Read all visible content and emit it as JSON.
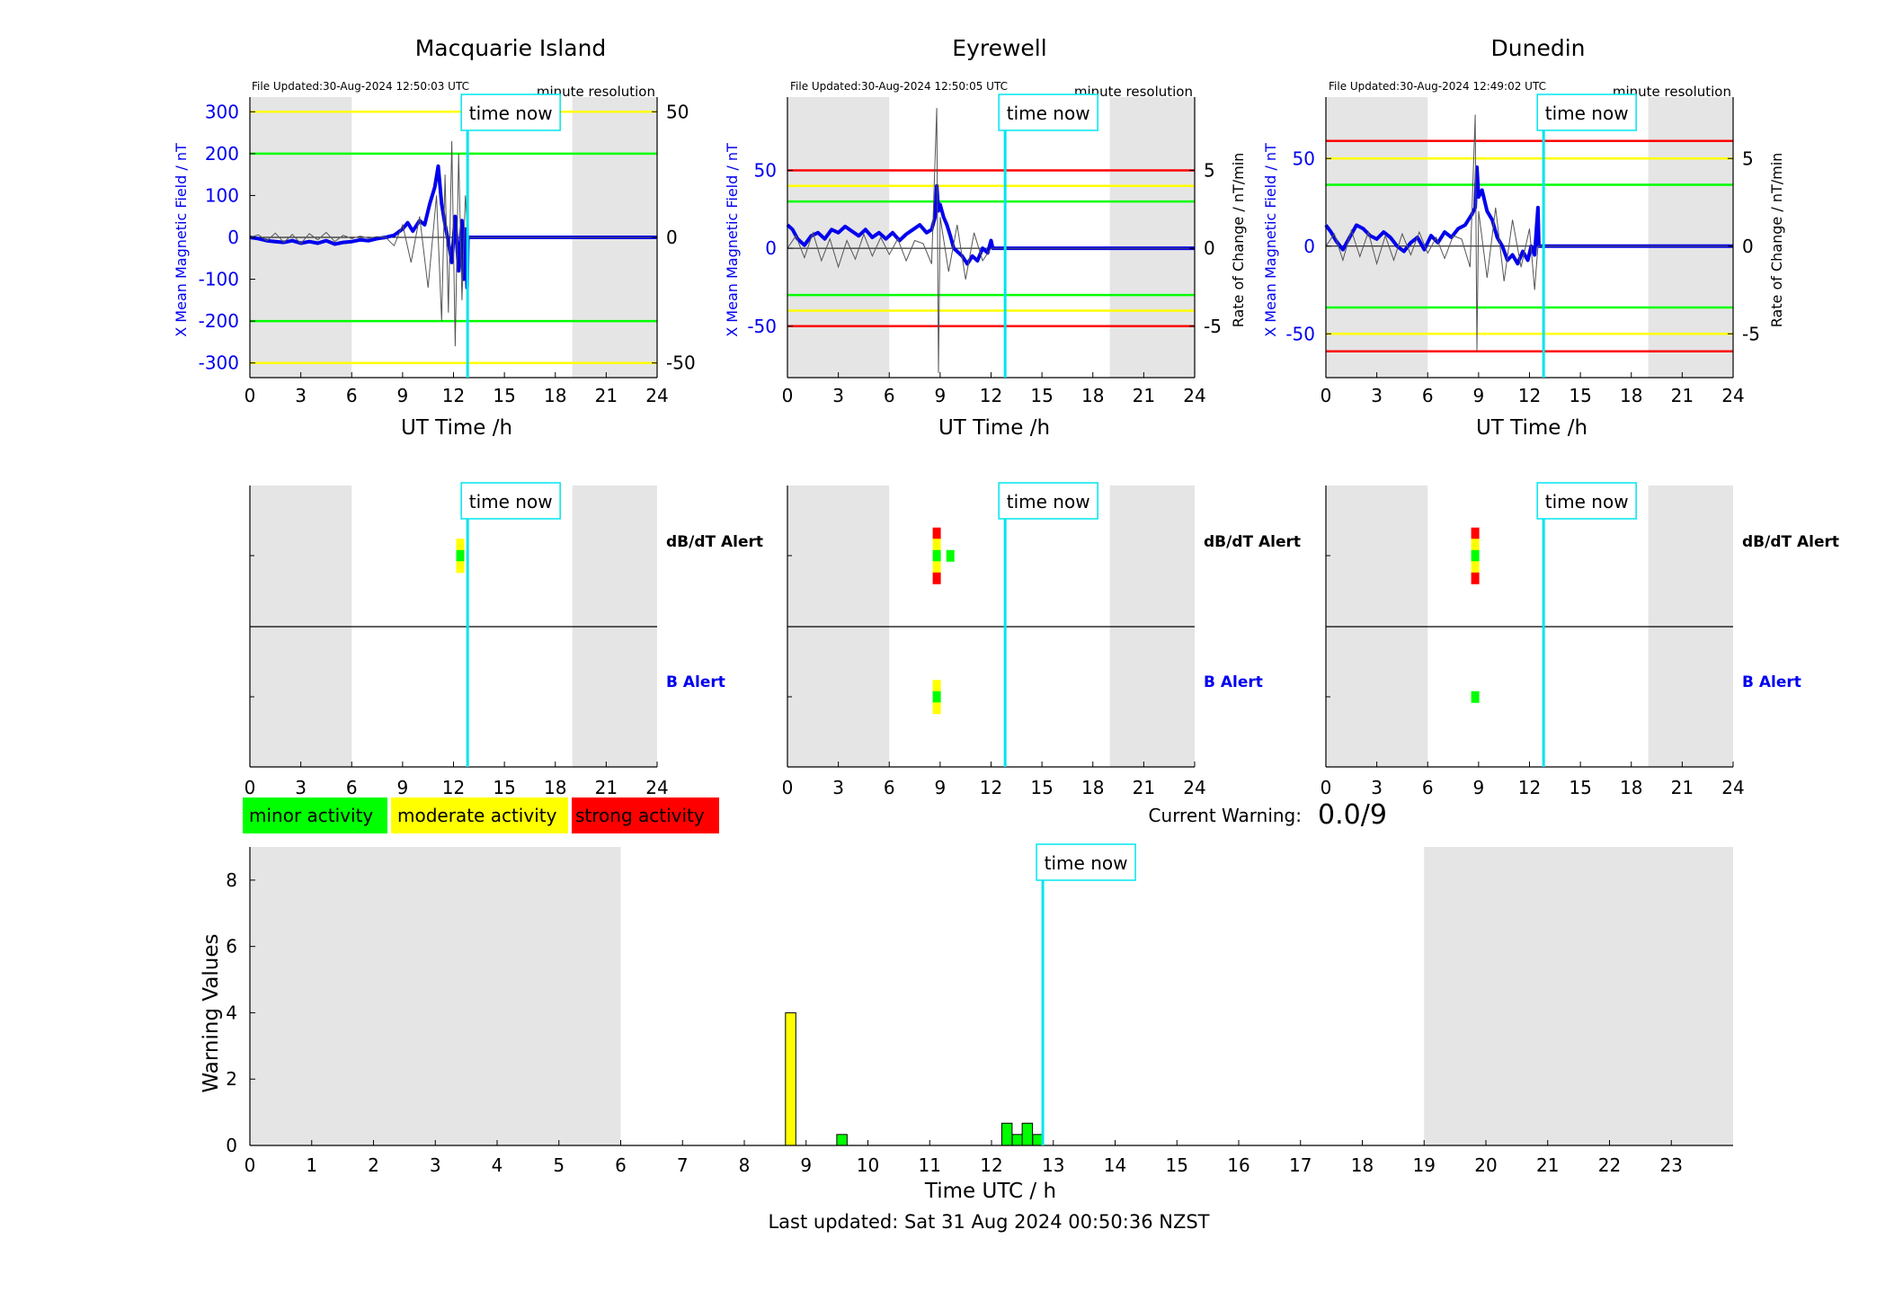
{
  "figure": {
    "footer": "Last updated: Sat 31 Aug 2024 00:50:36 NZST",
    "time_now_label": "time now",
    "current_warning_label": "Current Warning:",
    "current_warning_value": "0.0/9",
    "legend": [
      {
        "label": "minor activity",
        "color": "#00ff00"
      },
      {
        "label": "moderate activity",
        "color": "#ffff00"
      },
      {
        "label": "strong activity",
        "color": "#ff0000"
      }
    ],
    "colors": {
      "field": "#0000ee",
      "time_now": "#00e5ee",
      "shade": "#e5e5e5",
      "green": "#00ff00",
      "yellow": "#ffff00",
      "red": "#ff0000",
      "roc": "#555555"
    }
  },
  "chart_data": [
    {
      "type": "line",
      "panel": "field",
      "station": "Macquarie Island",
      "title": "Macquarie Island",
      "file_updated": "File Updated:30-Aug-2024 12:50:03 UTC",
      "resolution": "minute resolution",
      "xlabel": "UT Time /h",
      "ylabel_left": "X Mean Magnetic Field / nT",
      "ylabel_right": "",
      "xlim": [
        0,
        24
      ],
      "xticks": [
        0,
        3,
        6,
        9,
        12,
        15,
        18,
        21,
        24
      ],
      "ylim": [
        -335,
        335
      ],
      "yticks": [
        -300,
        -200,
        -100,
        0,
        100,
        200,
        300
      ],
      "yticks_right": [
        {
          "value": -50,
          "at": -300
        },
        {
          "value": 0,
          "at": 0
        },
        {
          "value": 50,
          "at": 300
        }
      ],
      "shaded_x": [
        [
          0,
          6
        ],
        [
          19,
          24
        ]
      ],
      "thresholds": [
        {
          "color": "yellow",
          "values": [
            300,
            -300
          ]
        },
        {
          "color": "green",
          "values": [
            200,
            -200
          ]
        }
      ],
      "time_now": 12.83,
      "series": [
        {
          "role": "field",
          "x": [
            0,
            0.5,
            1,
            1.5,
            2,
            2.5,
            3,
            3.5,
            4,
            4.5,
            5,
            5.5,
            6,
            6.5,
            7,
            7.5,
            8,
            8.5,
            9,
            9.3,
            9.6,
            10,
            10.3,
            10.6,
            10.9,
            11.1,
            11.3,
            11.5,
            11.7,
            11.9,
            12.1,
            12.3,
            12.5,
            12.6,
            12.7,
            12.8,
            12.85,
            13,
            24
          ],
          "y": [
            0,
            -3,
            -8,
            -10,
            -12,
            -8,
            -14,
            -10,
            -14,
            -8,
            -16,
            -12,
            -10,
            -6,
            -8,
            -3,
            0,
            5,
            20,
            35,
            15,
            40,
            30,
            80,
            120,
            170,
            80,
            30,
            -10,
            -60,
            50,
            -80,
            40,
            -100,
            20,
            -120,
            0,
            0,
            0
          ]
        },
        {
          "role": "rate_of_change",
          "x": [
            0,
            0.5,
            1,
            1.5,
            2,
            2.5,
            3,
            3.5,
            4,
            4.5,
            5,
            5.5,
            6,
            6.5,
            7,
            7.5,
            8,
            8.5,
            9,
            9.5,
            10,
            10.5,
            11,
            11.3,
            11.5,
            11.7,
            11.9,
            12.1,
            12.3,
            12.5,
            12.7,
            12.85,
            13,
            24
          ],
          "y": [
            0,
            6,
            -8,
            10,
            -12,
            7,
            -15,
            9,
            -6,
            12,
            -10,
            5,
            -3,
            3,
            -2,
            2,
            0,
            -20,
            30,
            -60,
            50,
            -120,
            100,
            -200,
            150,
            -180,
            230,
            -260,
            200,
            -150,
            100,
            0,
            0,
            0
          ]
        }
      ]
    },
    {
      "type": "line",
      "panel": "field",
      "station": "Eyrewell",
      "title": "Eyrewell",
      "file_updated": "File Updated:30-Aug-2024 12:50:05 UTC",
      "resolution": "minute resolution",
      "xlabel": "UT Time /h",
      "ylabel_left": "X Mean Magnetic Field / nT",
      "ylabel_right": "Rate of Change / nT/min",
      "xlim": [
        0,
        24
      ],
      "xticks": [
        0,
        3,
        6,
        9,
        12,
        15,
        18,
        21,
        24
      ],
      "ylim": [
        -83,
        97
      ],
      "yticks": [
        -50,
        0,
        50
      ],
      "yticks_right": [
        {
          "value": -5,
          "at": -50
        },
        {
          "value": 0,
          "at": 0
        },
        {
          "value": 5,
          "at": 50
        }
      ],
      "shaded_x": [
        [
          0,
          6
        ],
        [
          19,
          24
        ]
      ],
      "thresholds": [
        {
          "color": "red",
          "values": [
            50,
            -50
          ]
        },
        {
          "color": "yellow",
          "values": [
            40,
            -40
          ]
        },
        {
          "color": "green",
          "values": [
            30,
            -30
          ]
        }
      ],
      "time_now": 12.83,
      "series": [
        {
          "role": "field",
          "x": [
            0,
            0.3,
            0.6,
            1,
            1.4,
            1.8,
            2.2,
            2.6,
            3,
            3.4,
            3.8,
            4.2,
            4.6,
            5,
            5.4,
            5.8,
            6.2,
            6.6,
            7,
            7.4,
            7.8,
            8.2,
            8.5,
            8.7,
            8.8,
            8.9,
            9.0,
            9.2,
            9.4,
            9.6,
            9.8,
            10,
            10.3,
            10.6,
            10.9,
            11.2,
            11.5,
            11.8,
            12,
            12.1,
            24
          ],
          "y": [
            15,
            12,
            6,
            2,
            8,
            10,
            6,
            12,
            10,
            14,
            11,
            8,
            12,
            7,
            10,
            6,
            10,
            5,
            9,
            12,
            15,
            10,
            12,
            20,
            40,
            24,
            28,
            20,
            15,
            8,
            0,
            -2,
            -5,
            -10,
            -5,
            -8,
            0,
            -3,
            5,
            0,
            0
          ]
        },
        {
          "role": "rate_of_change",
          "x": [
            0,
            0.5,
            1,
            1.5,
            2,
            2.5,
            3,
            3.5,
            4,
            4.5,
            5,
            5.5,
            6,
            6.5,
            7,
            7.5,
            8,
            8.5,
            8.8,
            8.9,
            9.0,
            9.5,
            10,
            10.5,
            11,
            11.5,
            12,
            24
          ],
          "y": [
            0,
            8,
            -6,
            10,
            -8,
            6,
            -12,
            5,
            -7,
            9,
            -5,
            7,
            -4,
            6,
            -8,
            5,
            3,
            -10,
            90,
            -80,
            20,
            -15,
            15,
            -20,
            10,
            -8,
            0,
            0
          ]
        }
      ]
    },
    {
      "type": "line",
      "panel": "field",
      "station": "Dunedin",
      "title": "Dunedin",
      "file_updated": "File Updated:30-Aug-2024 12:49:02 UTC",
      "resolution": "minute resolution",
      "xlabel": "UT Time /h",
      "ylabel_left": "X Mean Magnetic Field / nT",
      "ylabel_right": "Rate of Change / nT/min",
      "xlim": [
        0,
        24
      ],
      "xticks": [
        0,
        3,
        6,
        9,
        12,
        15,
        18,
        21,
        24
      ],
      "ylim": [
        -75,
        85
      ],
      "yticks": [
        -50,
        0,
        50
      ],
      "yticks_right": [
        {
          "value": -5,
          "at": -50
        },
        {
          "value": 0,
          "at": 0
        },
        {
          "value": 5,
          "at": 50
        }
      ],
      "shaded_x": [
        [
          0,
          6
        ],
        [
          19,
          24
        ]
      ],
      "thresholds": [
        {
          "color": "red",
          "values": [
            60,
            -60
          ]
        },
        {
          "color": "yellow",
          "values": [
            50,
            -50
          ]
        },
        {
          "color": "green",
          "values": [
            35,
            -35
          ]
        }
      ],
      "time_now": 12.83,
      "series": [
        {
          "role": "field",
          "x": [
            0,
            0.3,
            0.6,
            1,
            1.4,
            1.8,
            2.2,
            2.6,
            3,
            3.4,
            3.8,
            4.2,
            4.6,
            5,
            5.4,
            5.8,
            6.2,
            6.6,
            7,
            7.4,
            7.8,
            8.2,
            8.6,
            8.8,
            8.9,
            9.0,
            9.2,
            9.5,
            9.8,
            10.1,
            10.4,
            10.7,
            11,
            11.3,
            11.6,
            11.9,
            12.1,
            12.3,
            12.5,
            12.55,
            24
          ],
          "y": [
            12,
            8,
            3,
            -2,
            5,
            12,
            10,
            6,
            4,
            8,
            5,
            0,
            -3,
            2,
            5,
            -2,
            6,
            2,
            8,
            5,
            10,
            12,
            18,
            22,
            45,
            28,
            32,
            20,
            15,
            5,
            0,
            -8,
            -5,
            -10,
            -3,
            -8,
            0,
            -5,
            22,
            0,
            0
          ]
        },
        {
          "role": "rate_of_change",
          "x": [
            0,
            0.5,
            1,
            1.5,
            2,
            2.5,
            3,
            3.5,
            4,
            4.5,
            5,
            5.5,
            6,
            6.5,
            7,
            7.5,
            8,
            8.5,
            8.8,
            8.9,
            9.0,
            9.5,
            10,
            10.5,
            11,
            11.5,
            12,
            12.3,
            12.5,
            24
          ],
          "y": [
            0,
            7,
            -8,
            9,
            -6,
            8,
            -10,
            6,
            -8,
            7,
            -5,
            8,
            -4,
            5,
            -7,
            6,
            4,
            -12,
            75,
            -60,
            20,
            -18,
            22,
            -20,
            15,
            -12,
            10,
            -25,
            0,
            0
          ]
        }
      ]
    },
    {
      "type": "heatmap",
      "panel": "alert",
      "station": "Macquarie Island",
      "xlim": [
        0,
        24
      ],
      "xticks": [
        0,
        3,
        6,
        9,
        12,
        15,
        18,
        21,
        24
      ],
      "shaded_x": [
        [
          0,
          6
        ],
        [
          19,
          24
        ]
      ],
      "time_now": 12.83,
      "alerts": [
        {
          "label": "dB/dT Alert",
          "label_color": "#000000",
          "bars": [
            {
              "x": 12.4,
              "levels": [
                "yellow",
                "green",
                "yellow"
              ]
            }
          ]
        },
        {
          "label": "B Alert",
          "label_color": "#0000ee",
          "bars": []
        }
      ]
    },
    {
      "type": "heatmap",
      "panel": "alert",
      "station": "Eyrewell",
      "xlim": [
        0,
        24
      ],
      "xticks": [
        0,
        3,
        6,
        9,
        12,
        15,
        18,
        21,
        24
      ],
      "shaded_x": [
        [
          0,
          6
        ],
        [
          19,
          24
        ]
      ],
      "time_now": 12.83,
      "alerts": [
        {
          "label": "dB/dT Alert",
          "label_color": "#000000",
          "bars": [
            {
              "x": 8.8,
              "levels": [
                "red",
                "yellow",
                "green",
                "yellow",
                "red"
              ]
            },
            {
              "x": 9.6,
              "levels": [
                "green"
              ]
            }
          ]
        },
        {
          "label": "B Alert",
          "label_color": "#0000ee",
          "bars": [
            {
              "x": 8.8,
              "levels": [
                "yellow",
                "green",
                "yellow"
              ]
            }
          ]
        }
      ]
    },
    {
      "type": "heatmap",
      "panel": "alert",
      "station": "Dunedin",
      "xlim": [
        0,
        24
      ],
      "xticks": [
        0,
        3,
        6,
        9,
        12,
        15,
        18,
        21,
        24
      ],
      "shaded_x": [
        [
          0,
          6
        ],
        [
          19,
          24
        ]
      ],
      "time_now": 12.83,
      "alerts": [
        {
          "label": "dB/dT Alert",
          "label_color": "#000000",
          "bars": [
            {
              "x": 8.8,
              "levels": [
                "red",
                "yellow",
                "green",
                "yellow",
                "red"
              ]
            }
          ]
        },
        {
          "label": "B Alert",
          "label_color": "#0000ee",
          "bars": [
            {
              "x": 8.8,
              "levels": [
                "green"
              ]
            }
          ]
        }
      ]
    },
    {
      "type": "bar",
      "panel": "warning",
      "xlabel": "Time UTC / h",
      "ylabel": "Warning Values",
      "xlim": [
        0,
        24
      ],
      "xticks": [
        0,
        1,
        2,
        3,
        4,
        5,
        6,
        7,
        8,
        9,
        10,
        11,
        12,
        13,
        14,
        15,
        16,
        17,
        18,
        19,
        20,
        21,
        22,
        23
      ],
      "ylim": [
        0,
        9
      ],
      "yticks": [
        0,
        2,
        4,
        6,
        8
      ],
      "shaded_x": [
        [
          0,
          6
        ],
        [
          19,
          24
        ]
      ],
      "time_now": 12.83,
      "bar_width": 0.167,
      "x": [
        8.75,
        9.58,
        12.25,
        12.42,
        12.58,
        12.75
      ],
      "values": [
        4,
        0.33,
        0.67,
        0.33,
        0.67,
        0.33
      ],
      "bar_colors": [
        "yellow",
        "green",
        "green",
        "green",
        "green",
        "green"
      ]
    }
  ]
}
